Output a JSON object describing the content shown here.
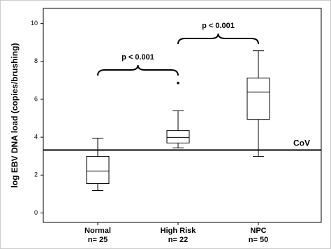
{
  "chart_data": {
    "type": "box",
    "y_label": "log EBV DNA load (copies/brushing)",
    "categories": [
      "Normal",
      "High Risk",
      "NPC"
    ],
    "n_labels": [
      "n= 25",
      "n= 22",
      "n= 50"
    ],
    "boxes": [
      {
        "min": 1.18,
        "q1": 1.55,
        "median": 2.21,
        "q3": 2.99,
        "max": 3.95,
        "outliers": []
      },
      {
        "min": 3.43,
        "q1": 3.69,
        "median": 3.99,
        "q3": 4.35,
        "max": 5.39,
        "outliers": [
          6.86
        ]
      },
      {
        "min": 2.99,
        "q1": 4.94,
        "median": 6.38,
        "q3": 7.12,
        "max": 8.56,
        "outliers": []
      }
    ],
    "reference_line": {
      "value": 3.32,
      "label": "CoV"
    },
    "comparisons": [
      {
        "from": 0,
        "to": 1,
        "label": "p < 0.001"
      },
      {
        "from": 1,
        "to": 2,
        "label": "p < 0.001"
      }
    ],
    "ylim": [
      -0.5,
      10.8
    ],
    "yticks": [
      0,
      2,
      4,
      6,
      8,
      10
    ]
  }
}
